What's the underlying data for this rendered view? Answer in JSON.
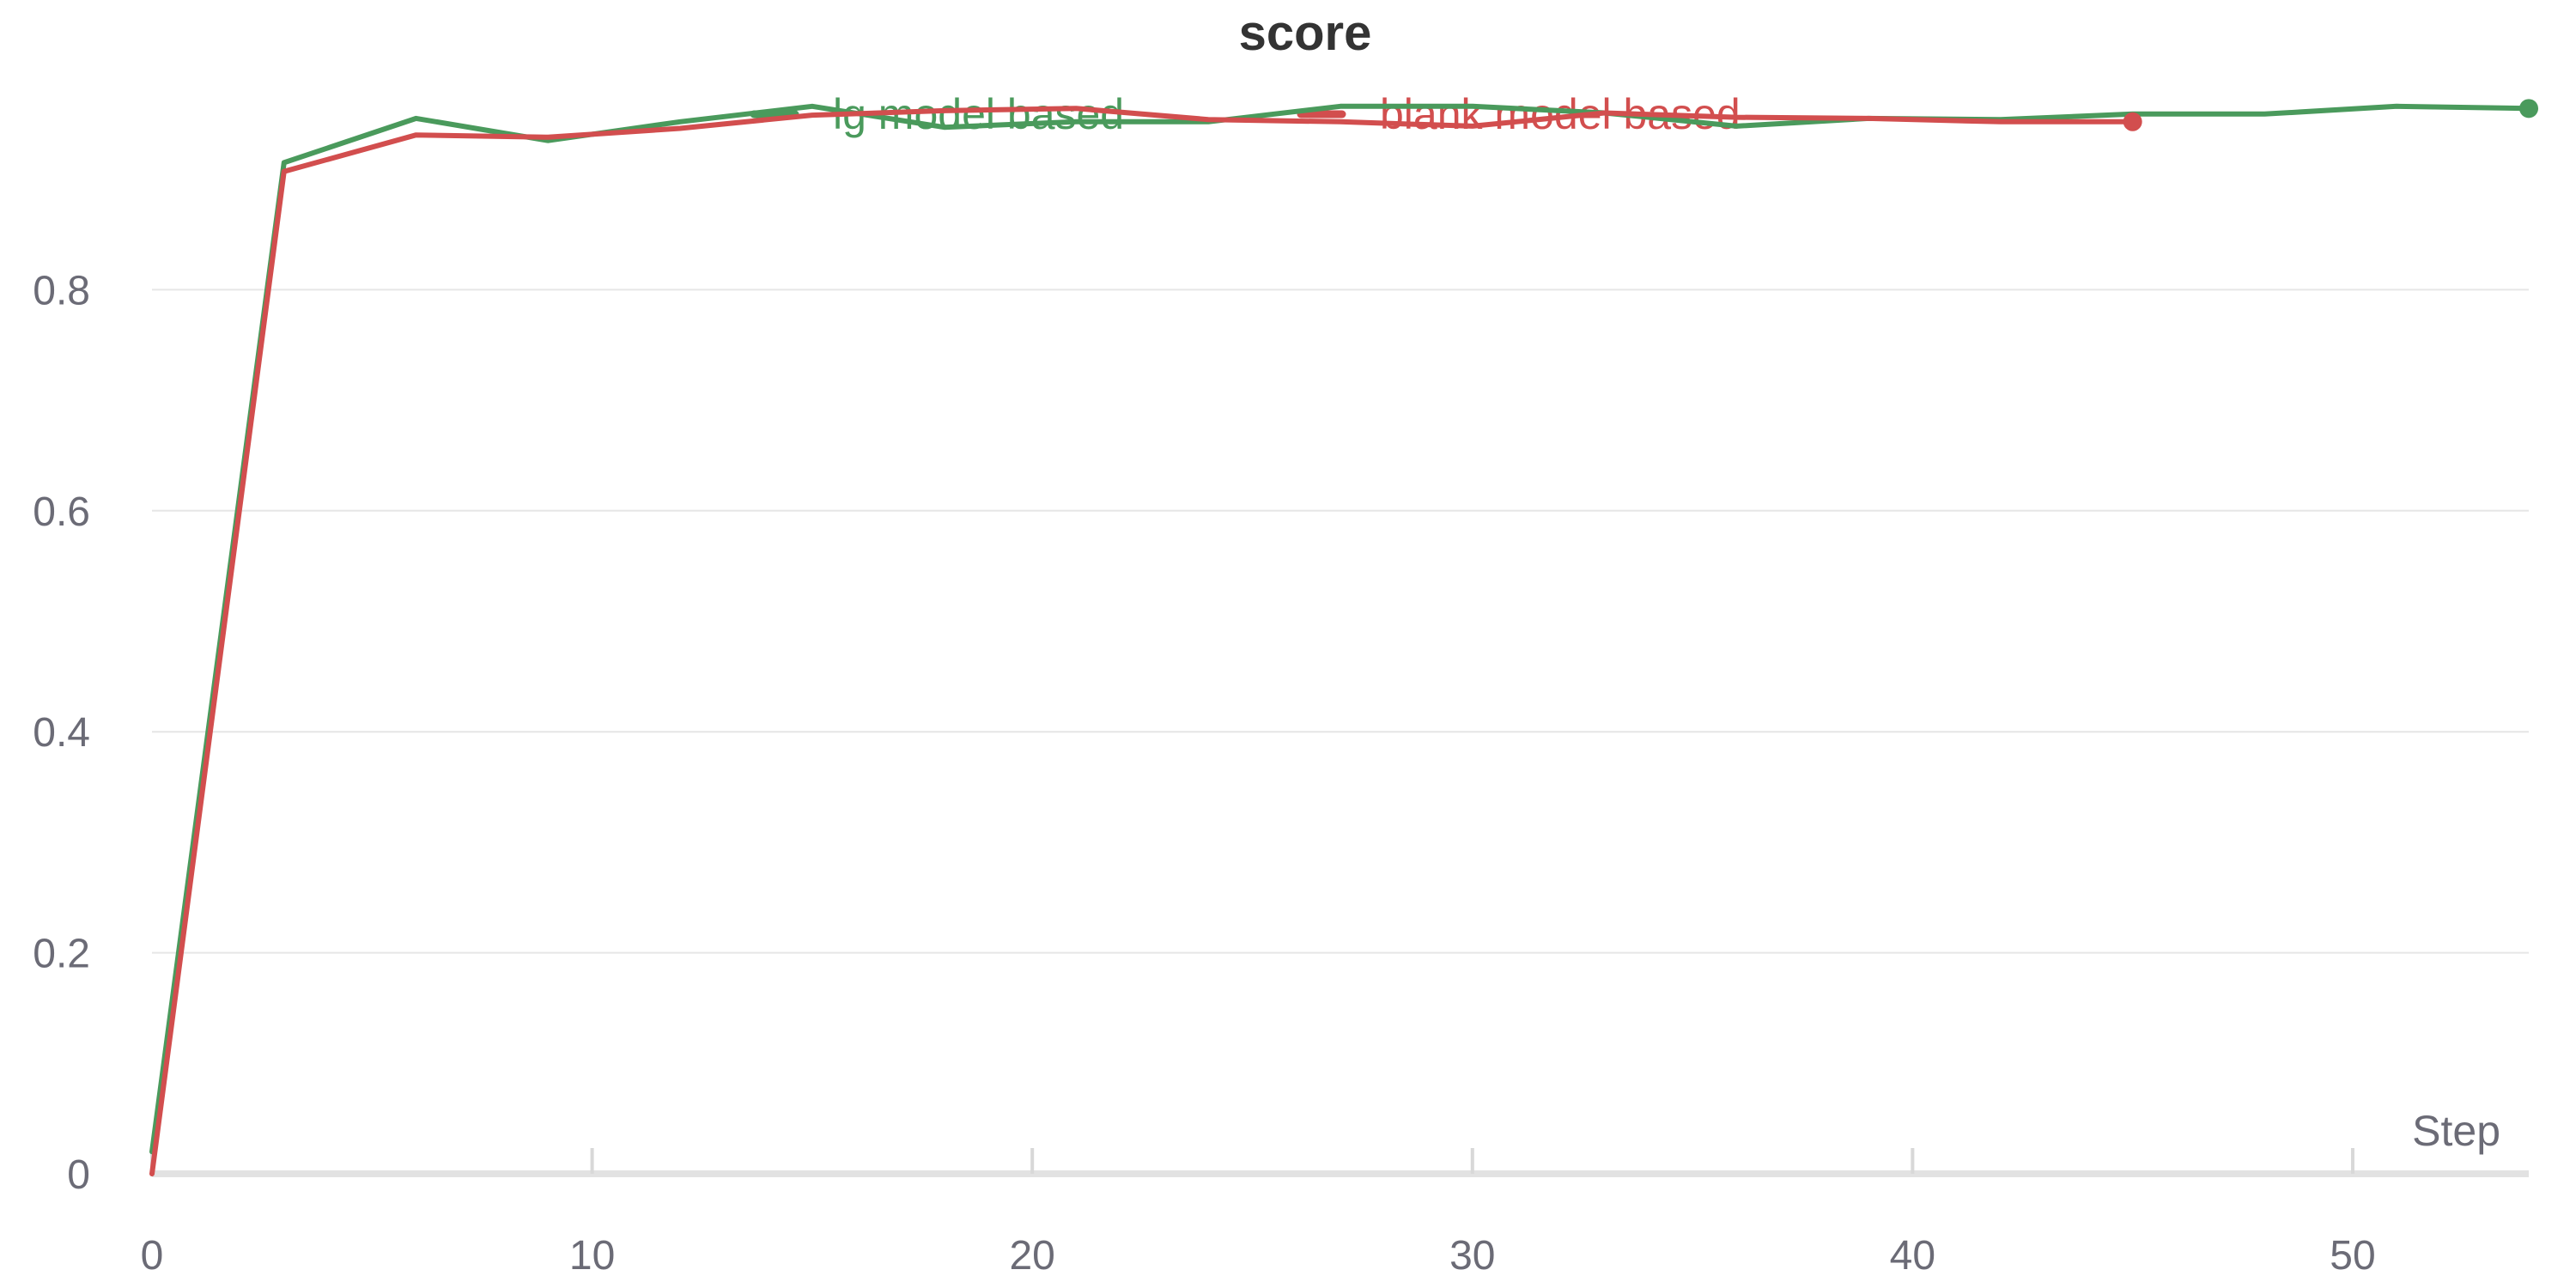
{
  "chart_data": {
    "type": "line",
    "title": "score",
    "xlabel": "Step",
    "ylabel": "",
    "xlim": [
      0,
      54
    ],
    "ylim": [
      0,
      1.0
    ],
    "xticks": [
      0,
      10,
      20,
      30,
      40,
      50
    ],
    "yticks": [
      0,
      0.2,
      0.4,
      0.6,
      0.8
    ],
    "xtick_labels": [
      "0",
      "10",
      "20",
      "30",
      "40",
      "50"
    ],
    "ytick_labels": [
      "0",
      "0.2",
      "0.4",
      "0.6",
      "0.8"
    ],
    "grid": "horizontal",
    "legend_position": "top-center",
    "series": [
      {
        "name": "lg model based",
        "color": "#4a9a5c",
        "end_marker": true,
        "x": [
          0,
          3,
          6,
          9,
          12,
          15,
          18,
          21,
          24,
          27,
          30,
          33,
          36,
          39,
          42,
          45,
          48,
          51,
          54
        ],
        "y": [
          0.02,
          0.915,
          0.955,
          0.935,
          0.952,
          0.966,
          0.947,
          0.952,
          0.952,
          0.966,
          0.966,
          0.96,
          0.948,
          0.955,
          0.954,
          0.959,
          0.959,
          0.966,
          0.964
        ]
      },
      {
        "name": "blank model based",
        "color": "#d24e4e",
        "end_marker": true,
        "x": [
          0,
          3,
          6,
          9,
          12,
          15,
          18,
          21,
          24,
          27,
          30,
          33,
          36,
          39,
          42,
          45
        ],
        "y": [
          0.0,
          0.907,
          0.94,
          0.938,
          0.946,
          0.958,
          0.962,
          0.964,
          0.954,
          0.952,
          0.948,
          0.96,
          0.956,
          0.955,
          0.952,
          0.952
        ]
      }
    ]
  }
}
